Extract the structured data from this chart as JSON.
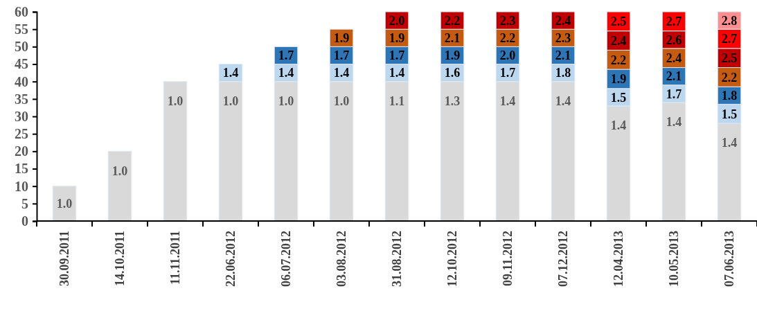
{
  "chart_data": {
    "type": "bar",
    "stacked": true,
    "categories": [
      "30.09.2011",
      "14.10.2011",
      "11.11.2011",
      "22.06.2012",
      "06.07.2012",
      "03.08.2012",
      "31.08.2012",
      "12.10.2012",
      "09.11.2012",
      "07.12.2012",
      "12.04.2013",
      "10.05.2013",
      "07.06.2013"
    ],
    "series": [
      {
        "color": "#d9d9d9",
        "values": [
          10,
          20,
          40,
          40,
          40,
          40,
          40,
          40,
          40,
          40,
          33,
          34,
          28
        ]
      },
      {
        "color": "#bdd7ee",
        "values": [
          null,
          null,
          null,
          5,
          5,
          5,
          5,
          5,
          5,
          5,
          5,
          5,
          5.5
        ]
      },
      {
        "color": "#2e75b6",
        "values": [
          null,
          null,
          null,
          null,
          5,
          5,
          5,
          5,
          5,
          5,
          5.5,
          5,
          5
        ]
      },
      {
        "color": "#c55a11",
        "values": [
          null,
          null,
          null,
          null,
          null,
          5,
          5,
          5,
          5,
          5,
          5.5,
          5.5,
          5.5
        ]
      },
      {
        "color": "#c00000",
        "values": [
          null,
          null,
          null,
          null,
          null,
          null,
          5,
          5,
          5,
          5,
          5.5,
          5,
          5.5
        ]
      },
      {
        "color": "#ff0000",
        "values": [
          null,
          null,
          null,
          null,
          null,
          null,
          null,
          null,
          null,
          null,
          5.5,
          5.5,
          5.5
        ]
      },
      {
        "color": "#ff8f8f",
        "values": [
          null,
          null,
          null,
          null,
          null,
          null,
          null,
          null,
          null,
          null,
          null,
          null,
          5
        ]
      }
    ],
    "annotations": [
      {
        "text": "1.0",
        "x": "30.09.2011",
        "y": 10
      },
      {
        "text": "1.0",
        "x": "14.10.2011",
        "y": 20
      },
      {
        "text": "1.0",
        "x": "11.11.2011",
        "y": 40
      },
      {
        "text": "1.0",
        "x": "22.06.2012",
        "y": 40
      },
      {
        "text": "1.4",
        "x": "22.06.2012",
        "y": 45
      },
      {
        "text": "1.0",
        "x": "06.07.2012",
        "y": 40
      },
      {
        "text": "1.4",
        "x": "06.07.2012",
        "y": 45
      },
      {
        "text": "1.7",
        "x": "06.07.2012",
        "y": 50
      },
      {
        "text": "1.0",
        "x": "03.08.2012",
        "y": 40
      },
      {
        "text": "1.4",
        "x": "03.08.2012",
        "y": 45
      },
      {
        "text": "1.7",
        "x": "03.08.2012",
        "y": 50
      },
      {
        "text": "1.9",
        "x": "03.08.2012",
        "y": 55
      },
      {
        "text": "1.1",
        "x": "31.08.2012",
        "y": 40
      },
      {
        "text": "1.4",
        "x": "31.08.2012",
        "y": 45
      },
      {
        "text": "1.7",
        "x": "31.08.2012",
        "y": 50
      },
      {
        "text": "1.9",
        "x": "31.08.2012",
        "y": 55
      },
      {
        "text": "2.0",
        "x": "31.08.2012",
        "y": 60
      },
      {
        "text": "1.3",
        "x": "12.10.2012",
        "y": 40
      },
      {
        "text": "1.6",
        "x": "12.10.2012",
        "y": 45
      },
      {
        "text": "1.9",
        "x": "12.10.2012",
        "y": 50
      },
      {
        "text": "2.1",
        "x": "12.10.2012",
        "y": 55
      },
      {
        "text": "2.2",
        "x": "12.10.2012",
        "y": 60
      },
      {
        "text": "1.4",
        "x": "09.11.2012",
        "y": 40
      },
      {
        "text": "1.7",
        "x": "09.11.2012",
        "y": 45
      },
      {
        "text": "2.0",
        "x": "09.11.2012",
        "y": 50
      },
      {
        "text": "2.2",
        "x": "09.11.2012",
        "y": 55
      },
      {
        "text": "2.3",
        "x": "09.11.2012",
        "y": 60
      },
      {
        "text": "1.4",
        "x": "07.12.2012",
        "y": 40
      },
      {
        "text": "1.8",
        "x": "07.12.2012",
        "y": 45
      },
      {
        "text": "2.1",
        "x": "07.12.2012",
        "y": 50
      },
      {
        "text": "2.3",
        "x": "07.12.2012",
        "y": 55
      },
      {
        "text": "2.4",
        "x": "07.12.2012",
        "y": 60
      },
      {
        "text": "1.4",
        "x": "12.04.2013",
        "y": 33
      },
      {
        "text": "1.5",
        "x": "12.04.2013",
        "y": 38
      },
      {
        "text": "1.9",
        "x": "12.04.2013",
        "y": 43.5
      },
      {
        "text": "2.2",
        "x": "12.04.2013",
        "y": 49
      },
      {
        "text": "2.4",
        "x": "12.04.2013",
        "y": 54.5
      },
      {
        "text": "2.5",
        "x": "12.04.2013",
        "y": 60
      },
      {
        "text": "1.4",
        "x": "10.05.2013",
        "y": 34
      },
      {
        "text": "1.7",
        "x": "10.05.2013",
        "y": 39
      },
      {
        "text": "2.1",
        "x": "10.05.2013",
        "y": 44
      },
      {
        "text": "2.4",
        "x": "10.05.2013",
        "y": 49.5
      },
      {
        "text": "2.6",
        "x": "10.05.2013",
        "y": 54.5
      },
      {
        "text": "2.7",
        "x": "10.05.2013",
        "y": 60
      },
      {
        "text": "1.4",
        "x": "07.06.2013",
        "y": 28
      },
      {
        "text": "1.5",
        "x": "07.06.2013",
        "y": 33.5
      },
      {
        "text": "1.8",
        "x": "07.06.2013",
        "y": 38.5
      },
      {
        "text": "2.2",
        "x": "07.06.2013",
        "y": 44
      },
      {
        "text": "2.5",
        "x": "07.06.2013",
        "y": 49.5
      },
      {
        "text": "2.7",
        "x": "07.06.2013",
        "y": 55
      },
      {
        "text": "2.8",
        "x": "07.06.2013",
        "y": 60
      }
    ],
    "ylim": [
      0,
      60
    ],
    "yticks": [
      0,
      5,
      10,
      15,
      20,
      25,
      30,
      35,
      40,
      45,
      50,
      55,
      60
    ]
  }
}
